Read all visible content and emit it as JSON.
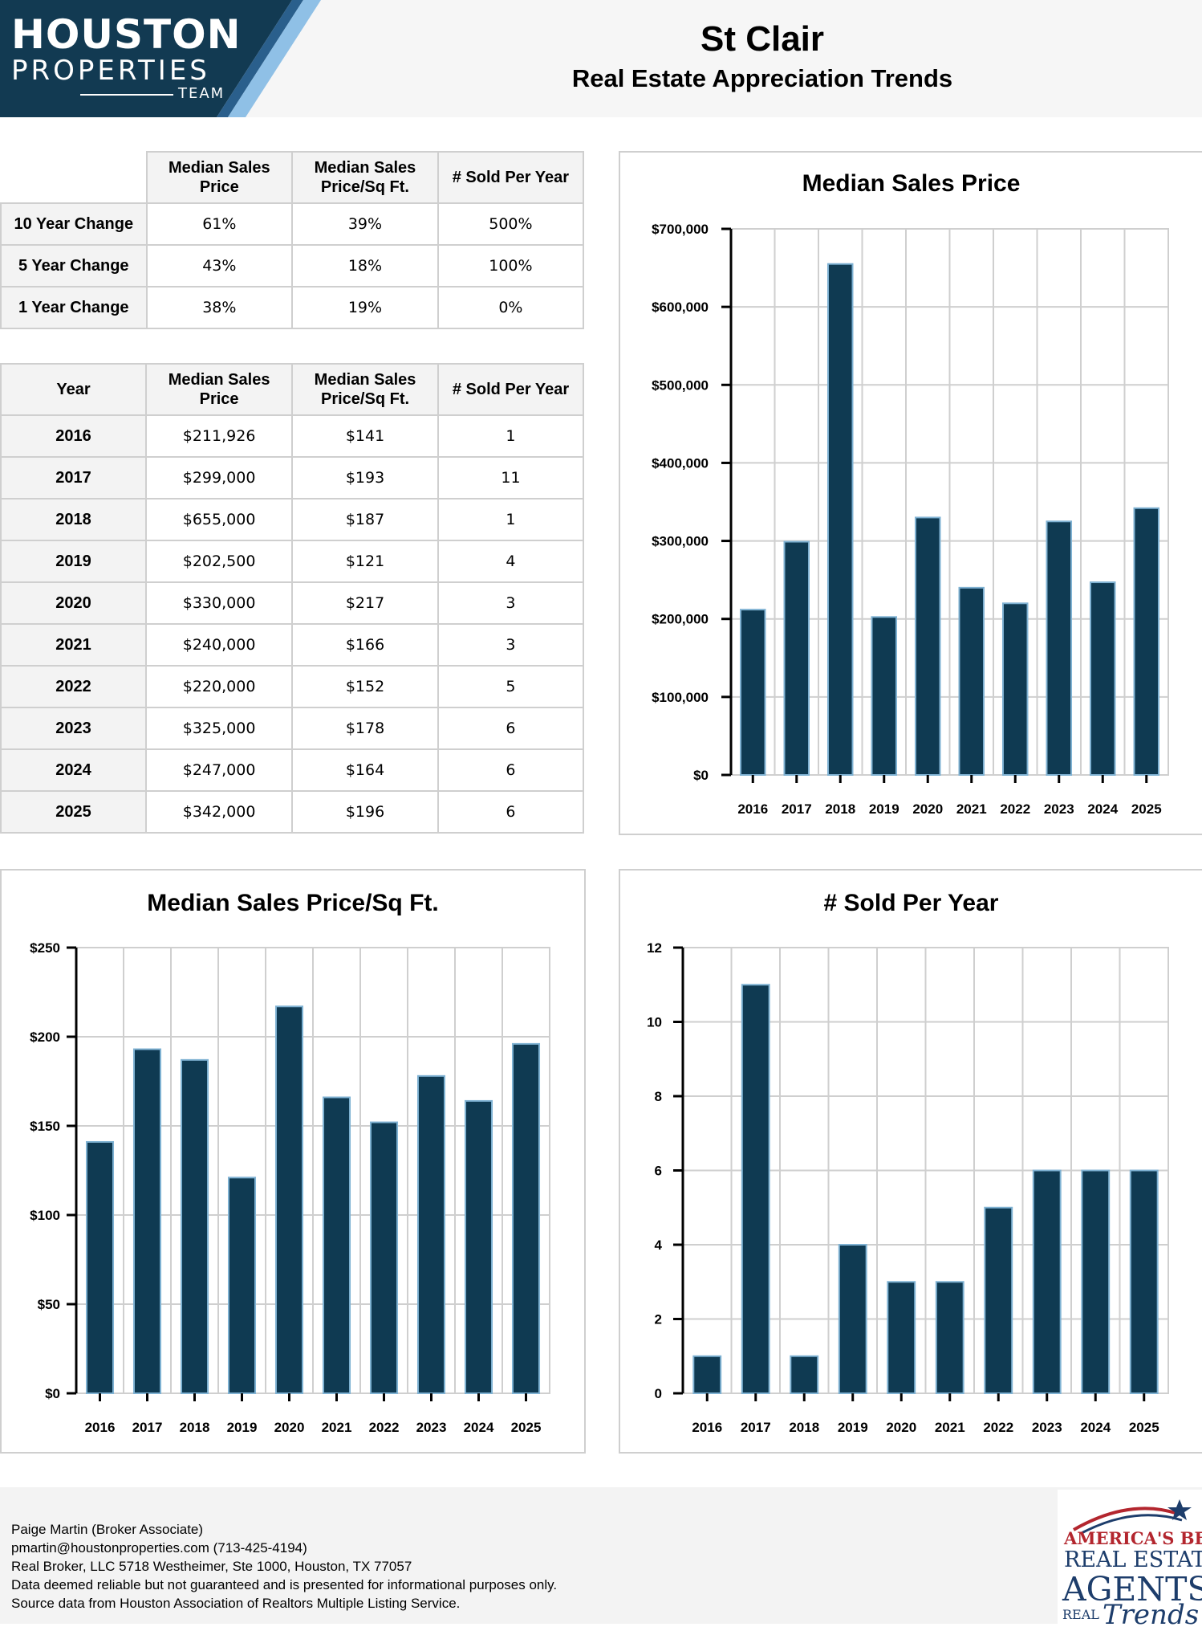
{
  "header": {
    "logo_line1": "HOUSTON",
    "logo_line2": "PROPERTIES",
    "logo_line3": "TEAM",
    "title": "St Clair",
    "subtitle": "Real Estate Appreciation Trends"
  },
  "colors": {
    "bar": "#0f3a52",
    "bar_edge": "#7fb2d3",
    "logo_dark": "#123a52",
    "logo_light": "#8fc0e6",
    "grid": "#cfcfcf"
  },
  "change_table": {
    "columns": [
      "Median Sales Price",
      "Median Sales Price/Sq Ft.",
      "# Sold Per Year"
    ],
    "rows": [
      {
        "label": "10 Year Change",
        "values": [
          "61%",
          "39%",
          "500%"
        ]
      },
      {
        "label": "5 Year Change",
        "values": [
          "43%",
          "18%",
          "100%"
        ]
      },
      {
        "label": "1 Year Change",
        "values": [
          "38%",
          "19%",
          "0%"
        ]
      }
    ]
  },
  "year_table": {
    "columns": [
      "Year",
      "Median Sales Price",
      "Median Sales Price/Sq Ft.",
      "# Sold Per Year"
    ],
    "rows": [
      {
        "year": "2016",
        "values": [
          "$211,926",
          "$141",
          "1"
        ]
      },
      {
        "year": "2017",
        "values": [
          "$299,000",
          "$193",
          "11"
        ]
      },
      {
        "year": "2018",
        "values": [
          "$655,000",
          "$187",
          "1"
        ]
      },
      {
        "year": "2019",
        "values": [
          "$202,500",
          "$121",
          "4"
        ]
      },
      {
        "year": "2020",
        "values": [
          "$330,000",
          "$217",
          "3"
        ]
      },
      {
        "year": "2021",
        "values": [
          "$240,000",
          "$166",
          "3"
        ]
      },
      {
        "year": "2022",
        "values": [
          "$220,000",
          "$152",
          "5"
        ]
      },
      {
        "year": "2023",
        "values": [
          "$325,000",
          "$178",
          "6"
        ]
      },
      {
        "year": "2024",
        "values": [
          "$247,000",
          "$164",
          "6"
        ]
      },
      {
        "year": "2025",
        "values": [
          "$342,000",
          "$196",
          "6"
        ]
      }
    ]
  },
  "chart_data": [
    {
      "type": "bar",
      "title": "Median Sales Price",
      "categories": [
        "2016",
        "2017",
        "2018",
        "2019",
        "2020",
        "2021",
        "2022",
        "2023",
        "2024",
        "2025"
      ],
      "values": [
        211926,
        299000,
        655000,
        202500,
        330000,
        240000,
        220000,
        325000,
        247000,
        342000
      ],
      "ylim": [
        0,
        700000
      ],
      "yticks": [
        0,
        100000,
        200000,
        300000,
        400000,
        500000,
        600000,
        700000
      ],
      "ytick_labels": [
        "$0",
        "$100,000",
        "$200,000",
        "$300,000",
        "$400,000",
        "$500,000",
        "$600,000",
        "$700,000"
      ],
      "grid": true
    },
    {
      "type": "bar",
      "title": "Median Sales Price/Sq Ft.",
      "categories": [
        "2016",
        "2017",
        "2018",
        "2019",
        "2020",
        "2021",
        "2022",
        "2023",
        "2024",
        "2025"
      ],
      "values": [
        141,
        193,
        187,
        121,
        217,
        166,
        152,
        178,
        164,
        196
      ],
      "ylim": [
        0,
        250
      ],
      "yticks": [
        0,
        50,
        100,
        150,
        200,
        250
      ],
      "ytick_labels": [
        "$0",
        "$50",
        "$100",
        "$150",
        "$200",
        "$250"
      ],
      "grid": true
    },
    {
      "type": "bar",
      "title": "# Sold Per Year",
      "categories": [
        "2016",
        "2017",
        "2018",
        "2019",
        "2020",
        "2021",
        "2022",
        "2023",
        "2024",
        "2025"
      ],
      "values": [
        1,
        11,
        1,
        4,
        3,
        3,
        5,
        6,
        6,
        6
      ],
      "ylim": [
        0,
        12
      ],
      "yticks": [
        0,
        2,
        4,
        6,
        8,
        10,
        12
      ],
      "ytick_labels": [
        "0",
        "2",
        "4",
        "6",
        "8",
        "10",
        "12"
      ],
      "grid": true
    }
  ],
  "footer": {
    "lines": [
      "Paige Martin (Broker Associate)",
      "pmartin@houstonproperties.com (713-425-4194)",
      "Real Broker, LLC 5718 Westheimer, Ste 1000, Houston, TX 77057",
      "Data deemed reliable but not guaranteed and is presented for informational purposes only.",
      "Source data from Houston Association of Realtors Multiple Listing Service."
    ],
    "badge_line1": "AMERICA'S BEST",
    "badge_line2": "REAL ESTATE",
    "badge_line3": "AGENTS",
    "badge_line4": "REAL",
    "badge_line5": "Trends"
  }
}
